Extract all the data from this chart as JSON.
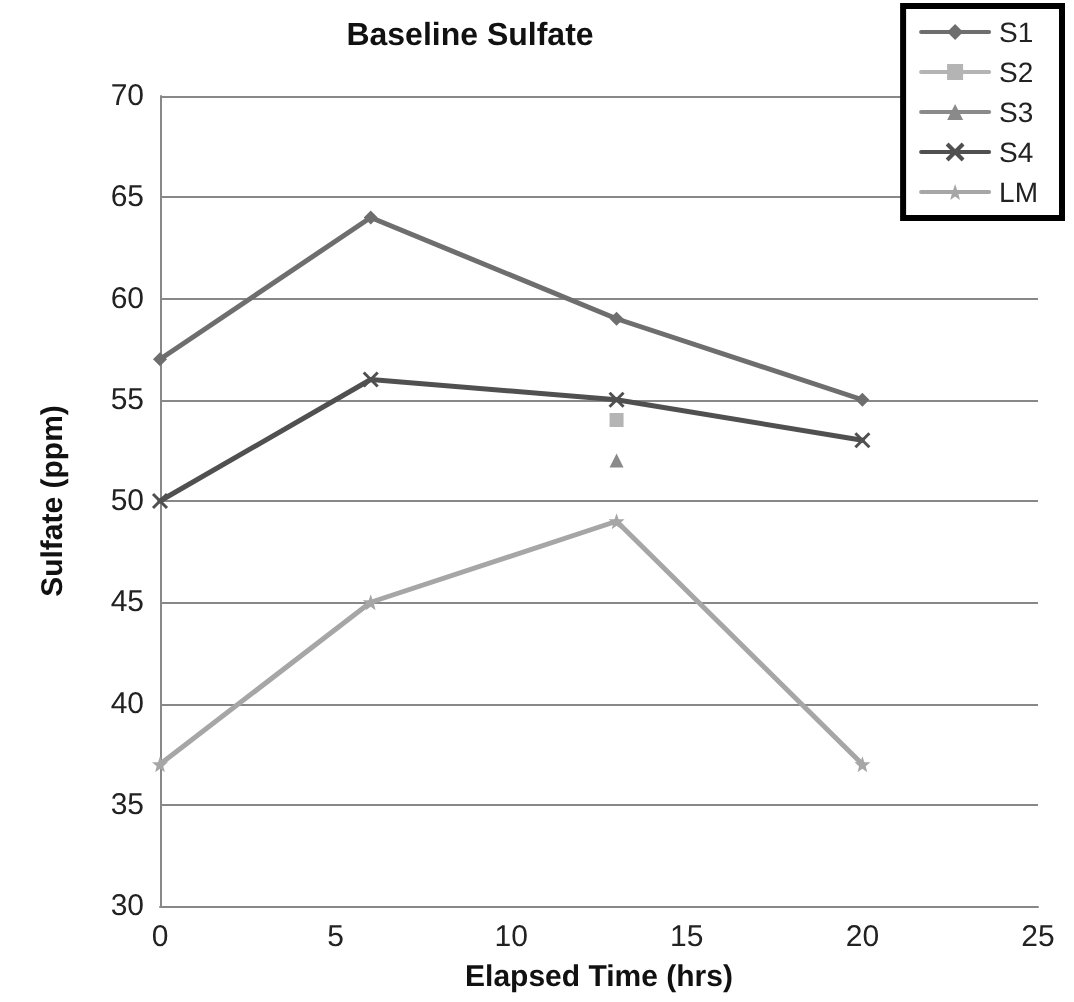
{
  "chart_data": {
    "type": "line",
    "title": "Baseline Sulfate",
    "xlabel": "Elapsed Time (hrs)",
    "ylabel": "Sulfate (ppm)",
    "x": [
      0,
      6,
      13,
      20
    ],
    "series": [
      {
        "name": "S1",
        "color": "#6e6e6e",
        "marker": "diamond",
        "values": [
          57,
          64,
          59,
          55
        ]
      },
      {
        "name": "S2",
        "color": "#b4b4b4",
        "marker": "square",
        "x": [
          13
        ],
        "values": [
          54
        ]
      },
      {
        "name": "S3",
        "color": "#8a8a8a",
        "marker": "triangle",
        "x": [
          13
        ],
        "values": [
          52
        ]
      },
      {
        "name": "S4",
        "color": "#505050",
        "marker": "cross",
        "values": [
          50,
          56,
          55,
          53
        ]
      },
      {
        "name": "LM",
        "color": "#a6a6a6",
        "marker": "star",
        "values": [
          37,
          45,
          49,
          37
        ]
      }
    ],
    "xlim": [
      0,
      25
    ],
    "xticks": [
      0,
      5,
      10,
      15,
      20,
      25
    ],
    "ylim": [
      30,
      70
    ],
    "yticks": [
      30,
      35,
      40,
      45,
      50,
      55,
      60,
      65,
      70
    ],
    "grid": "y",
    "legend": "top right",
    "line_style": "solid"
  }
}
